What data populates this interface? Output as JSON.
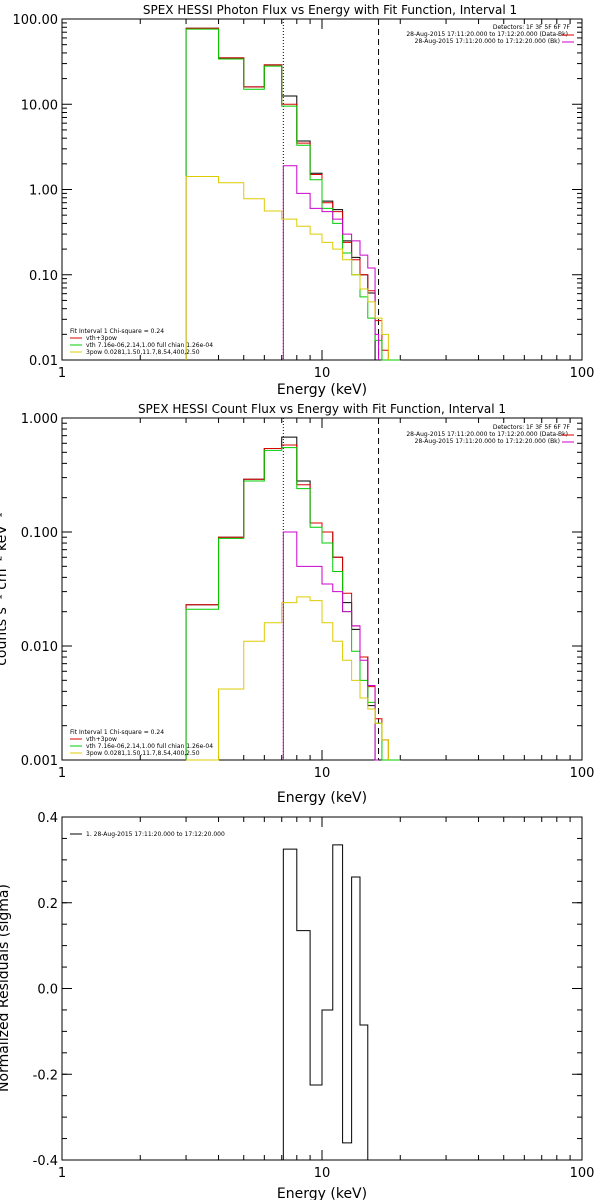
{
  "chart_data": [
    {
      "type": "line",
      "title": "SPEX HESSI Photon Flux vs Energy with Fit Function, Interval 1",
      "xlabel": "Energy (keV)",
      "ylabel": "",
      "xscale": "log",
      "yscale": "log",
      "xlim": [
        1,
        100
      ],
      "ylim": [
        0.01,
        100
      ],
      "xticks": [
        {
          "v": 1,
          "label": "1"
        },
        {
          "v": 10,
          "label": "10"
        },
        {
          "v": 100,
          "label": "100"
        }
      ],
      "yticks": [
        {
          "v": 100,
          "label": "100.00"
        },
        {
          "v": 10,
          "label": "10.00"
        },
        {
          "v": 1,
          "label": "1.00"
        },
        {
          "v": 0.1,
          "label": "0.10"
        },
        {
          "v": 0.01,
          "label": "0.01"
        }
      ],
      "info_top_right": [
        "Detectors: 1F 3F 5F 6F 7F",
        "28-Aug-2015 17:11:20.000 to 17:12:20.000 (Data-Bk)",
        "28-Aug-2015 17:11:20.000 to 17:12:20.000 (Bk)"
      ],
      "legend_title": "Fit Interval 1   Chi-square = 0.24",
      "legend": [
        {
          "label": "vth+3pow",
          "color": "#dd0000"
        },
        {
          "label": "vth 7.16e-06,2.14,1.00  full chian 1.26e-04",
          "color": "#00cc00"
        },
        {
          "label": "3pow 0.0281,1.50,11.7,8.54,400,2.50",
          "color": "#ddcc00"
        }
      ],
      "vlines": [
        {
          "x": 7.1,
          "style": "dotted"
        },
        {
          "x": 16.5,
          "style": "dashed"
        }
      ],
      "edges": [
        3,
        4,
        5,
        6,
        7,
        8,
        9,
        10,
        11,
        12,
        13,
        14,
        15,
        16,
        17,
        18,
        20
      ],
      "series": [
        {
          "name": "data",
          "color": "#000000",
          "x_from": 3,
          "x_to": 17,
          "values": [
            78,
            35,
            16,
            29,
            12.5,
            3.7,
            1.55,
            0.73,
            0.58,
            0.25,
            0.16,
            0.1,
            0.061,
            0.01,
            0.01,
            0.01
          ]
        },
        {
          "name": "vth+3pow",
          "color": "#dd0000",
          "x_from": 3,
          "x_to": 20,
          "values": [
            78,
            35,
            16,
            29,
            10,
            3.5,
            1.5,
            0.7,
            0.55,
            0.24,
            0.15,
            0.1,
            0.065,
            0.029,
            0.013
          ]
        },
        {
          "name": "vth",
          "color": "#00cc00",
          "x_from": 3,
          "x_to": 18,
          "values": [
            76,
            34,
            15,
            28,
            9.5,
            3.3,
            1.3,
            0.6,
            0.4,
            0.18,
            0.1,
            0.055,
            0.031,
            0.017,
            0.01,
            0.01
          ]
        },
        {
          "name": "data-bk",
          "color": "#cc00cc",
          "x_from": 7.1,
          "x_to": 16.5,
          "values": [
            1.9,
            0.9,
            0.6,
            0.55,
            0.45,
            0.3,
            0.25,
            0.17,
            0.12,
            0.02
          ]
        },
        {
          "name": "3pow",
          "color": "#ddcc00",
          "x_from": 3,
          "x_to": 18,
          "values": [
            1.42,
            1.2,
            0.78,
            0.56,
            0.45,
            0.37,
            0.3,
            0.24,
            0.2,
            0.15,
            0.1,
            0.068,
            0.048,
            0.031,
            0.02
          ]
        }
      ]
    },
    {
      "type": "line",
      "title": "SPEX HESSI Count Flux vs Energy with Fit Function, Interval 1",
      "xlabel": "Energy (keV)",
      "ylabel": "counts s⁻¹ cm⁻² keV⁻¹",
      "xscale": "log",
      "yscale": "log",
      "xlim": [
        1,
        100
      ],
      "ylim": [
        0.001,
        1
      ],
      "xticks": [
        {
          "v": 1,
          "label": "1"
        },
        {
          "v": 10,
          "label": "10"
        },
        {
          "v": 100,
          "label": "100"
        }
      ],
      "yticks": [
        {
          "v": 1,
          "label": "1.000"
        },
        {
          "v": 0.1,
          "label": "0.100"
        },
        {
          "v": 0.01,
          "label": "0.010"
        },
        {
          "v": 0.001,
          "label": "0.001"
        }
      ],
      "info_top_right": [
        "Detectors: 1F 3F 5F 6F 7F",
        "28-Aug-2015 17:11:20.000 to 17:12:20.000 (Data-Bk)",
        "28-Aug-2015 17:11:20.000 to 17:12:20.000 (Bk)"
      ],
      "legend_title": "Fit Interval 1   Chi-square = 0.24",
      "legend": [
        {
          "label": "vth+3pow",
          "color": "#dd0000"
        },
        {
          "label": "vth 7.16e-06,2.14,1.00  full chian 1.26e-04",
          "color": "#00cc00"
        },
        {
          "label": "3pow 0.0281,1.50,11.7,8.54,400,2.50",
          "color": "#ddcc00"
        }
      ],
      "vlines": [
        {
          "x": 7.1,
          "style": "dotted"
        },
        {
          "x": 16.5,
          "style": "dashed"
        }
      ],
      "edges": [
        3,
        4,
        5,
        6,
        7,
        8,
        9,
        10,
        11,
        12,
        13,
        14,
        15,
        16,
        17,
        18,
        20
      ],
      "series": [
        {
          "name": "data",
          "color": "#000000",
          "x_from": 3,
          "x_to": 17,
          "values": [
            0.023,
            0.09,
            0.29,
            0.54,
            0.68,
            0.28,
            0.12,
            0.1,
            0.06,
            0.024,
            0.014,
            0.008,
            0.003,
            0.001,
            0.001,
            0.001
          ]
        },
        {
          "name": "vth+3pow",
          "color": "#dd0000",
          "x_from": 3,
          "x_to": 20,
          "values": [
            0.023,
            0.09,
            0.29,
            0.54,
            0.58,
            0.26,
            0.12,
            0.1,
            0.06,
            0.029,
            0.015,
            0.008,
            0.0044,
            0.0023,
            0.0015
          ]
        },
        {
          "name": "vth",
          "color": "#00cc00",
          "x_from": 3,
          "x_to": 18,
          "values": [
            0.021,
            0.088,
            0.28,
            0.52,
            0.55,
            0.24,
            0.11,
            0.08,
            0.045,
            0.02,
            0.009,
            0.005,
            0.0032,
            0.0021,
            0.001,
            0.001
          ]
        },
        {
          "name": "data-bk",
          "color": "#cc00cc",
          "x_from": 7.1,
          "x_to": 16.5,
          "values": [
            0.1,
            0.05,
            0.05,
            0.035,
            0.03,
            0.02,
            0.015,
            0.0075,
            0.0045,
            0.001
          ]
        },
        {
          "name": "3pow",
          "color": "#ddcc00",
          "x_from": 3,
          "x_to": 18,
          "values": [
            0.001,
            0.0042,
            0.011,
            0.016,
            0.024,
            0.027,
            0.025,
            0.016,
            0.011,
            0.0075,
            0.005,
            0.0035,
            0.0028,
            0.0021,
            0.0015
          ]
        }
      ]
    },
    {
      "type": "line",
      "title": "",
      "xlabel": "Energy (keV)",
      "ylabel": "Normalized Residuals (sigma)",
      "xscale": "log",
      "yscale": "linear",
      "xlim": [
        1,
        100
      ],
      "ylim": [
        -0.4,
        0.4
      ],
      "xticks": [
        {
          "v": 1,
          "label": "1"
        },
        {
          "v": 10,
          "label": "10"
        },
        {
          "v": 100,
          "label": "100"
        }
      ],
      "yticks": [
        {
          "v": 0.4,
          "label": "0.4"
        },
        {
          "v": 0.2,
          "label": "0.2"
        },
        {
          "v": 0,
          "label": "0.0"
        },
        {
          "v": -0.2,
          "label": "-0.2"
        },
        {
          "v": -0.4,
          "label": "-0.4"
        }
      ],
      "legend": [
        {
          "label": "1. 28-Aug-2015 17:11:20.000 to 17:12:20.000",
          "color": "#000000"
        }
      ],
      "edges": [
        7.1,
        8,
        9,
        10,
        11,
        12,
        13,
        14,
        15,
        16.5
      ],
      "series": [
        {
          "name": "residuals",
          "color": "#000000",
          "values": [
            0.325,
            0.135,
            -0.225,
            -0.05,
            0.335,
            -0.36,
            0.26,
            -0.085,
            -0.4
          ]
        }
      ]
    }
  ]
}
